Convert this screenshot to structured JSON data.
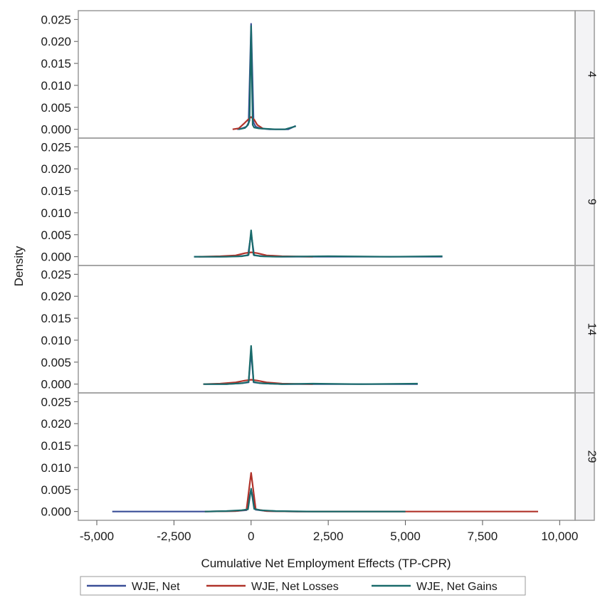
{
  "chart_data": {
    "type": "line",
    "xlabel": "Cumulative Net Employment Effects (TP-CPR)",
    "ylabel": "Density",
    "xlim": [
      -5600,
      10500
    ],
    "ylim": [
      -0.002,
      0.027
    ],
    "xticks": [
      -5000,
      -2500,
      0,
      2500,
      5000,
      7500,
      10000
    ],
    "xtick_labels": [
      "-5,000",
      "-2,500",
      "0",
      "2,500",
      "5,000",
      "7,500",
      "10,000"
    ],
    "yticks": [
      0,
      0.005,
      0.01,
      0.015,
      0.02,
      0.025
    ],
    "ytick_labels": [
      "0.000",
      "0.005",
      "0.010",
      "0.015",
      "0.020",
      "0.025"
    ],
    "grid": false,
    "legend_position": "bottom",
    "series_meta": [
      {
        "name": "WJE, Net",
        "color": "#3a4f97"
      },
      {
        "name": "WJE, Net Losses",
        "color": "#b0332a"
      },
      {
        "name": "WJE, Net Gains",
        "color": "#1a6b6b"
      }
    ],
    "panels": [
      {
        "label": "4",
        "series": [
          {
            "name": "WJE, Net",
            "x": [
              -450,
              -300,
              -150,
              -80,
              0,
              80,
              150,
              300,
              600,
              900,
              1200,
              1450
            ],
            "y": [
              0,
              0.0002,
              0.0006,
              0.0015,
              0.024,
              0.0015,
              0.0006,
              0.0002,
              0,
              0,
              0,
              0.0008
            ]
          },
          {
            "name": "WJE, Net Losses",
            "x": [
              -600,
              -400,
              -200,
              -100,
              0,
              100,
              200,
              400
            ],
            "y": [
              0,
              0.0002,
              0.0015,
              0.0022,
              0.0028,
              0.0022,
              0.001,
              0.0001
            ]
          },
          {
            "name": "WJE, Net Gains",
            "x": [
              -400,
              -200,
              -100,
              -50,
              0,
              50,
              100,
              250,
              500,
              800,
              1100,
              1450
            ],
            "y": [
              0,
              0.0003,
              0.001,
              0.002,
              0.0235,
              0.001,
              0.0004,
              0.0002,
              0.0001,
              0,
              0,
              0.0007
            ]
          }
        ]
      },
      {
        "label": "9",
        "series": [
          {
            "name": "WJE, Net",
            "x": [
              -1850,
              -1000,
              -400,
              -100,
              0,
              100,
              400,
              1000,
              2500,
              4500,
              6200
            ],
            "y": [
              0,
              0,
              0.0001,
              0.0003,
              0.0052,
              0.0003,
              0.0001,
              0,
              0,
              0,
              0
            ]
          },
          {
            "name": "WJE, Net Losses",
            "x": [
              -1700,
              -1000,
              -500,
              -200,
              0,
              200,
              500,
              1000,
              2000
            ],
            "y": [
              0,
              0.0001,
              0.0003,
              0.0008,
              0.001,
              0.0008,
              0.0003,
              0.0001,
              0
            ]
          },
          {
            "name": "WJE, Net Gains",
            "x": [
              -1850,
              -800,
              -300,
              -80,
              0,
              80,
              300,
              800,
              2500,
              4500,
              6200
            ],
            "y": [
              0,
              0,
              0.0001,
              0.0004,
              0.006,
              0.0004,
              0.0001,
              0,
              0.0001,
              0,
              0.0001
            ]
          }
        ]
      },
      {
        "label": "14",
        "series": [
          {
            "name": "WJE, Net",
            "x": [
              -1500,
              -800,
              -300,
              -80,
              0,
              80,
              300,
              1000,
              3000,
              5400
            ],
            "y": [
              0,
              0,
              0.0002,
              0.0004,
              0.0075,
              0.0004,
              0.0002,
              0,
              0,
              0
            ]
          },
          {
            "name": "WJE, Net Losses",
            "x": [
              -1550,
              -1000,
              -500,
              -200,
              0,
              200,
              500,
              1000,
              2000
            ],
            "y": [
              0,
              0.0001,
              0.0004,
              0.0008,
              0.001,
              0.0008,
              0.0004,
              0.0001,
              0
            ]
          },
          {
            "name": "WJE, Net Gains",
            "x": [
              -1550,
              -800,
              -300,
              -80,
              0,
              80,
              300,
              1000,
              2000,
              3500,
              5400
            ],
            "y": [
              0,
              0,
              0.0002,
              0.0005,
              0.0087,
              0.0005,
              0.0002,
              0,
              0.0001,
              0,
              0.0001
            ]
          }
        ]
      },
      {
        "label": "29",
        "series": [
          {
            "name": "WJE, Net",
            "x": [
              -4500,
              -3000,
              -1500,
              -500,
              -150,
              0,
              150,
              500,
              1500,
              3000,
              5000
            ],
            "y": [
              0,
              0,
              0,
              0.0001,
              0.0003,
              0.005,
              0.0004,
              0.0001,
              0,
              0,
              0
            ]
          },
          {
            "name": "WJE, Net Losses",
            "x": [
              -1500,
              -500,
              -150,
              0,
              150,
              500,
              1500,
              3000,
              5000,
              7000,
              9300
            ],
            "y": [
              0,
              0.0001,
              0.0004,
              0.0088,
              0.0005,
              0.0001,
              0,
              0,
              0,
              0,
              0
            ]
          },
          {
            "name": "WJE, Net Gains",
            "x": [
              -1500,
              -800,
              -300,
              -100,
              0,
              100,
              300,
              800,
              2000,
              3500,
              5000
            ],
            "y": [
              0,
              0.0001,
              0.0003,
              0.0005,
              0.0052,
              0.0006,
              0.0003,
              0.0001,
              0,
              0,
              0
            ]
          }
        ]
      }
    ]
  }
}
